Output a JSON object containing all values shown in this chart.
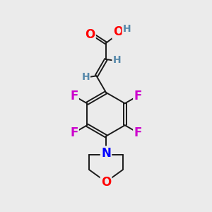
{
  "background_color": "#ebebeb",
  "bond_color": "#1a1a1a",
  "atom_colors": {
    "O": "#ff0000",
    "F": "#cc00cc",
    "N": "#0000ff",
    "H": "#5588aa",
    "C": "#1a1a1a"
  },
  "font_size_atoms": 12,
  "font_size_H": 10,
  "figsize": [
    3.0,
    3.0
  ],
  "dpi": 100
}
